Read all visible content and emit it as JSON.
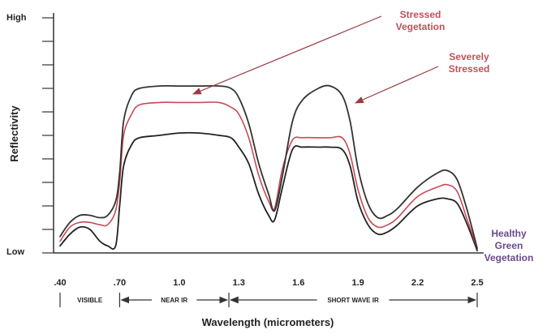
{
  "chart_data": {
    "type": "line",
    "title": "",
    "ylabel": "Reflectivity",
    "xlabel": "Wavelength (micrometers)",
    "y_tick_labels": {
      "high": "High",
      "low": "Low"
    },
    "x_ticks": [
      {
        "value": 0.4,
        "label": ".40"
      },
      {
        "value": 0.7,
        "label": ".70"
      },
      {
        "value": 1.0,
        "label": "1.0"
      },
      {
        "value": 1.3,
        "label": "1.3"
      },
      {
        "value": 1.6,
        "label": "1.6"
      },
      {
        "value": 1.9,
        "label": "1.9"
      },
      {
        "value": 2.2,
        "label": "2.2"
      },
      {
        "value": 2.5,
        "label": "2.5"
      }
    ],
    "xlim": [
      0.4,
      2.5
    ],
    "ylim": [
      0,
      100
    ],
    "regions": [
      {
        "label": "VISIBLE",
        "from": 0.4,
        "to": 0.7
      },
      {
        "label": "NEAR IR",
        "from": 0.7,
        "to": 1.25
      },
      {
        "label": "SHORT WAVE IR",
        "from": 1.25,
        "to": 2.5
      }
    ],
    "series": [
      {
        "name": "Severely Stressed",
        "color": "#333333",
        "x": [
          0.4,
          0.45,
          0.5,
          0.55,
          0.6,
          0.64,
          0.68,
          0.7,
          0.72,
          0.76,
          0.8,
          0.9,
          1.0,
          1.1,
          1.2,
          1.26,
          1.3,
          1.35,
          1.4,
          1.45,
          1.48,
          1.52,
          1.57,
          1.62,
          1.7,
          1.76,
          1.82,
          1.86,
          1.9,
          1.95,
          2.0,
          2.05,
          2.1,
          2.2,
          2.3,
          2.35,
          2.4,
          2.45,
          2.5
        ],
        "y": [
          7,
          13,
          16,
          16,
          15,
          16,
          22,
          34,
          56,
          67,
          70,
          71,
          71,
          71,
          71,
          70,
          66,
          55,
          38,
          25,
          18,
          33,
          56,
          65,
          70,
          71,
          67,
          56,
          36,
          21,
          15,
          16,
          19,
          28,
          34,
          35,
          31,
          18,
          2
        ]
      },
      {
        "name": "Stressed Vegetation",
        "color": "#c84a55",
        "x": [
          0.4,
          0.45,
          0.5,
          0.55,
          0.6,
          0.64,
          0.68,
          0.7,
          0.72,
          0.76,
          0.8,
          0.9,
          1.0,
          1.1,
          1.2,
          1.26,
          1.3,
          1.35,
          1.4,
          1.45,
          1.48,
          1.52,
          1.57,
          1.62,
          1.7,
          1.76,
          1.82,
          1.86,
          1.9,
          1.95,
          2.0,
          2.05,
          2.1,
          2.2,
          2.3,
          2.35,
          2.4,
          2.45,
          2.5
        ],
        "y": [
          5,
          11,
          13,
          13,
          12,
          12,
          18,
          30,
          50,
          59,
          63,
          64,
          64,
          64,
          64,
          62,
          59,
          49,
          33,
          22,
          19,
          36,
          48,
          49,
          49,
          49,
          49,
          42,
          27,
          15,
          11,
          12,
          15,
          24,
          28,
          29,
          26,
          14,
          2
        ]
      },
      {
        "name": "Healthy Green Vegetation",
        "color": "#222222",
        "x": [
          0.4,
          0.45,
          0.5,
          0.55,
          0.6,
          0.64,
          0.68,
          0.7,
          0.72,
          0.76,
          0.8,
          0.9,
          1.0,
          1.1,
          1.2,
          1.26,
          1.3,
          1.35,
          1.4,
          1.45,
          1.48,
          1.52,
          1.57,
          1.62,
          1.7,
          1.76,
          1.82,
          1.86,
          1.9,
          1.95,
          2.0,
          2.05,
          2.1,
          2.2,
          2.3,
          2.35,
          2.4,
          2.45,
          2.5
        ],
        "y": [
          3,
          8,
          11,
          10,
          5,
          3,
          3,
          20,
          37,
          46,
          49,
          50,
          51,
          51,
          50,
          49,
          45,
          38,
          25,
          16,
          14,
          28,
          44,
          45,
          45,
          45,
          44,
          37,
          22,
          12,
          8,
          9,
          12,
          20,
          23,
          23,
          21,
          12,
          1
        ]
      }
    ],
    "annotations": [
      {
        "lines": [
          "Stressed",
          "Vegetation"
        ],
        "color": "#c0505a",
        "target_series": "Stressed Vegetation"
      },
      {
        "lines": [
          "Severely",
          "Stressed"
        ],
        "color": "#c0505a",
        "target_series": "Severely Stressed"
      },
      {
        "lines": [
          "Healthy",
          "Green",
          "Vegetation"
        ],
        "color": "#6a4a8a",
        "target_series": "Healthy Green Vegetation"
      }
    ]
  }
}
